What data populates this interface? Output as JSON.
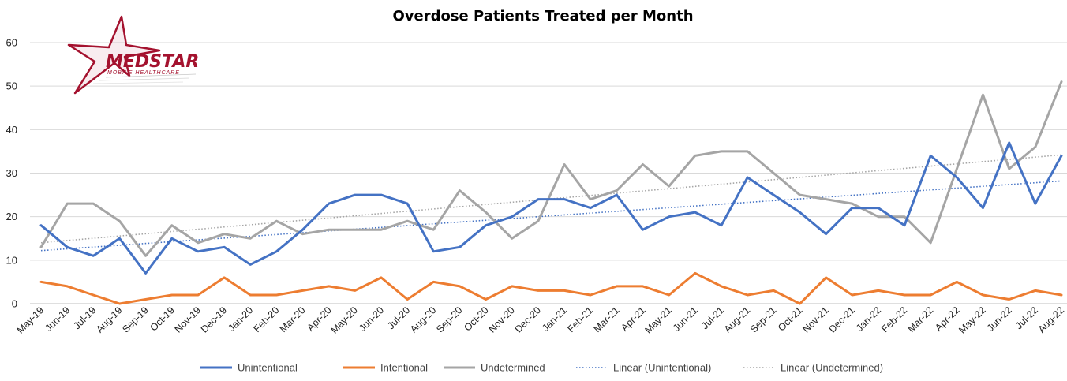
{
  "chart_data": {
    "type": "line",
    "title": "Overdose Patients Treated per Month",
    "categories": [
      "May-19",
      "Jun-19",
      "Jul-19",
      "Aug-19",
      "Sep-19",
      "Oct-19",
      "Nov-19",
      "Dec-19",
      "Jan-20",
      "Feb-20",
      "Mar-20",
      "Apr-20",
      "May-20",
      "Jun-20",
      "Jul-20",
      "Aug-20",
      "Sep-20",
      "Oct-20",
      "Nov-20",
      "Dec-20",
      "Jan-21",
      "Feb-21",
      "Mar-21",
      "Apr-21",
      "May-21",
      "Jun-21",
      "Jul-21",
      "Aug-21",
      "Sep-21",
      "Oct-21",
      "Nov-21",
      "Dec-21",
      "Jan-22",
      "Feb-22",
      "Mar-22",
      "Apr-22",
      "May-22",
      "Jun-22",
      "Jul-22",
      "Aug-22"
    ],
    "series": [
      {
        "name": "Unintentional",
        "color": "#4472c4",
        "values": [
          18,
          13,
          11,
          15,
          7,
          15,
          12,
          13,
          9,
          12,
          17,
          23,
          25,
          25,
          23,
          12,
          13,
          18,
          20,
          24,
          24,
          22,
          25,
          17,
          20,
          21,
          18,
          29,
          25,
          21,
          16,
          22,
          22,
          18,
          34,
          29,
          22,
          37,
          23,
          34
        ]
      },
      {
        "name": "Intentional",
        "color": "#ed7d31",
        "values": [
          5,
          4,
          2,
          0,
          1,
          2,
          2,
          6,
          2,
          2,
          3,
          4,
          3,
          6,
          1,
          5,
          4,
          1,
          4,
          3,
          3,
          2,
          4,
          4,
          2,
          7,
          4,
          2,
          3,
          0,
          6,
          2,
          3,
          2,
          2,
          5,
          2,
          1,
          3,
          2
        ]
      },
      {
        "name": "Undetermined",
        "color": "#a5a5a5",
        "values": [
          13,
          23,
          23,
          19,
          11,
          18,
          14,
          16,
          15,
          19,
          16,
          17,
          17,
          17,
          19,
          17,
          26,
          21,
          15,
          19,
          32,
          24,
          26,
          32,
          27,
          34,
          35,
          35,
          30,
          25,
          24,
          23,
          20,
          20,
          14,
          31,
          48,
          31,
          36,
          51
        ]
      }
    ],
    "trendlines": [
      {
        "name": "Linear (Unintentional)",
        "color": "#4472c4",
        "start": 12.2,
        "end": 28.2
      },
      {
        "name": "Linear (Undetermined)",
        "color": "#a5a5a5",
        "start": 14.0,
        "end": 34.2
      }
    ],
    "ylim": [
      0,
      60
    ],
    "yticks": [
      0,
      10,
      20,
      30,
      40,
      50,
      60
    ],
    "grid": true,
    "legend_position": "bottom"
  },
  "logo": {
    "name": "MEDSTAR",
    "subtitle": "MOBILE HEALTHCARE",
    "color": "#a4122e"
  }
}
